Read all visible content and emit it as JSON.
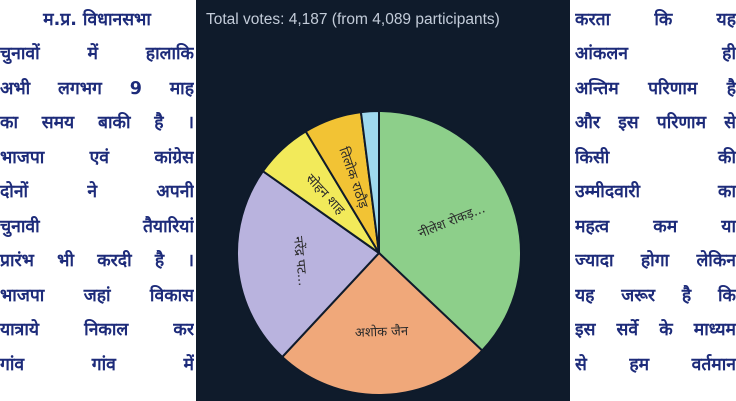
{
  "left_column": {
    "lines": [
      "म.प्र. विधानसभा",
      "चुनावों में हालाकि",
      "अभी लगभग 9 माह",
      "का समय बाकी है ।",
      "भाजपा एवं कांग्रेस",
      "दोनों ने अपनी",
      "चुनावी तैयारियां",
      "प्रारंभ भी करदी है ।",
      "भाजपा जहां विकास",
      "यात्राये निकाल कर",
      "गांव गांव में"
    ]
  },
  "right_column": {
    "lines": [
      "करता कि यह",
      "आंकलन ही",
      "अन्तिम परिणाम है",
      "और इस परिणाम से",
      "किसी की",
      "उम्मीदवारी का",
      "महत्व कम या",
      "ज्यादा होगा लेकिन",
      "यह जरूर है कि",
      "इस सर्वे के माध्यम",
      "से हम वर्तमान"
    ]
  },
  "poll": {
    "summary": "Total votes: 4,187 (from 4,089 participants)"
  },
  "chart_data": {
    "type": "pie",
    "labels": [
      "नीलेश रोकड़...",
      "अशोक जैन",
      "नरेंद्र पट...",
      "सोहन शाह",
      "तिलोक राठौड़",
      ""
    ],
    "values": [
      36.5,
      24.5,
      22.5,
      6.5,
      6.5,
      2.0
    ],
    "colors": [
      "#8dcf8a",
      "#f0a87a",
      "#b9b3de",
      "#f2ea5a",
      "#f2c334",
      "#9fd9ee"
    ],
    "start_angle_deg": 0,
    "direction": "clockwise"
  }
}
